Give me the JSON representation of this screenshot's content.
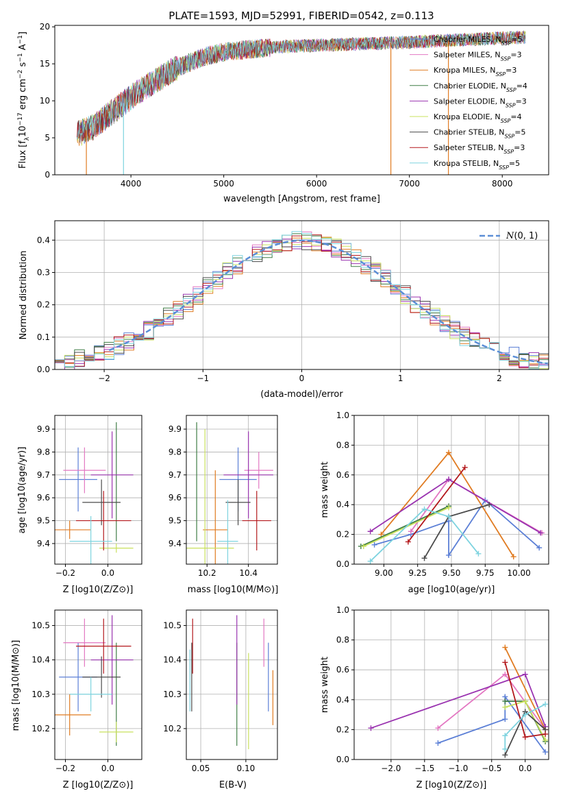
{
  "page_title": "PLATE=1593, MJD=52991, FIBERID=0542, z=0.113",
  "colors": {
    "Chabrier MILES": "#5b7fd6",
    "Salpeter MILES": "#e377c2",
    "Kroupa MILES": "#e07b21",
    "Chabrier ELODIE": "#3f7d45",
    "Salpeter ELODIE": "#9a33b0",
    "Kroupa ELODIE": "#c8e05c",
    "Chabrier STELIB": "#4a4a4a",
    "Salpeter STELIB": "#b3171b",
    "Kroupa STELIB": "#7dd3df",
    "normal_curve": "#5b8ed6"
  },
  "chart_data": [
    {
      "type": "line",
      "title": "PLATE=1593, MJD=52991, FIBERID=0542, z=0.113",
      "xlabel": "wavelength [Angstrom, rest frame]",
      "ylabel": "Flux [fλ10⁻¹⁷ erg cm⁻² s⁻¹ A⁻¹]",
      "xlim": [
        3180,
        8500
      ],
      "ylim": [
        0,
        20.2
      ],
      "xticks": [
        4000,
        5000,
        6000,
        7000,
        8000
      ],
      "yticks": [
        0,
        5,
        10,
        15,
        20
      ],
      "grid": false,
      "legend": "upper right",
      "series": [
        {
          "name": "Chabrier MILES, N_SSP=5"
        },
        {
          "name": "Salpeter MILES, N_SSP=3"
        },
        {
          "name": "Kroupa MILES, N_SSP=3"
        },
        {
          "name": "Chabrier ELODIE, N_SSP=4"
        },
        {
          "name": "Salpeter ELODIE, N_SSP=3"
        },
        {
          "name": "Kroupa ELODIE, N_SSP=4"
        },
        {
          "name": "Chabrier STELIB, N_SSP=5"
        },
        {
          "name": "Salpeter STELIB, N_SSP=3"
        },
        {
          "name": "Kroupa STELIB, N_SSP=5"
        }
      ],
      "continuum": {
        "x": [
          3420,
          3600,
          3800,
          4000,
          4200,
          4500,
          4800,
          5000,
          5300,
          5600,
          6000,
          6500,
          7000,
          7500,
          8000,
          8250
        ],
        "y": [
          5.5,
          6.5,
          8.5,
          10.5,
          12.2,
          14.5,
          16.0,
          16.6,
          17.0,
          17.3,
          17.5,
          17.7,
          17.9,
          18.2,
          18.5,
          18.6
        ]
      },
      "dropouts": [
        {
          "label": "Kroupa MILES",
          "x": 3520
        },
        {
          "label": "Kroupa STELIB",
          "x": 3920
        },
        {
          "label": "Kroupa MILES",
          "x": 6800
        },
        {
          "label": "Kroupa MILES",
          "x": 7420
        }
      ]
    },
    {
      "type": "line",
      "xlabel": "(data-model)/error",
      "ylabel": "Normed distribution",
      "xlim": [
        -2.5,
        2.5
      ],
      "ylim": [
        0,
        0.46
      ],
      "xticks": [
        -2,
        -1,
        0,
        1,
        2
      ],
      "yticks": [
        0.0,
        0.1,
        0.2,
        0.3,
        0.4
      ],
      "grid": true,
      "legend": "upper right",
      "legend_label": "N(0, 1)",
      "bin_width": 0.1,
      "noise_amplitude": 0.06
    },
    {
      "type": "scatter",
      "xlabel": "Z [log10(Z/Z⊙)]",
      "ylabel": "age [log10(age/yr)]",
      "xlim": [
        -0.25,
        0.16
      ],
      "ylim": [
        9.31,
        9.96
      ],
      "xticks": [
        -0.2,
        0.0
      ],
      "yticks": [
        9.4,
        9.5,
        9.6,
        9.7,
        9.8,
        9.9
      ],
      "grid": true,
      "points": [
        {
          "series": "Chabrier MILES",
          "x": -0.14,
          "xerr": 0.09,
          "y": 9.68,
          "yerr": 0.14
        },
        {
          "series": "Salpeter MILES",
          "x": -0.11,
          "xerr": 0.1,
          "y": 9.72,
          "yerr": 0.1
        },
        {
          "series": "Kroupa MILES",
          "x": -0.18,
          "xerr": 0.1,
          "y": 9.46,
          "yerr": 0.04
        },
        {
          "series": "Chabrier ELODIE",
          "x": 0.04,
          "xerr": 0.0,
          "y": 9.67,
          "yerr": 0.26
        },
        {
          "series": "Salpeter ELODIE",
          "x": 0.02,
          "xerr": 0.1,
          "y": 9.7,
          "yerr": 0.19
        },
        {
          "series": "Kroupa ELODIE",
          "x": 0.04,
          "xerr": 0.08,
          "y": 9.38,
          "yerr": 0.02
        },
        {
          "series": "Chabrier STELIB",
          "x": -0.03,
          "xerr": 0.09,
          "y": 9.58,
          "yerr": 0.1
        },
        {
          "series": "Salpeter STELIB",
          "x": -0.02,
          "xerr": 0.13,
          "y": 9.5,
          "yerr": 0.13
        },
        {
          "series": "Kroupa STELIB",
          "x": -0.08,
          "xerr": 0.1,
          "y": 9.41,
          "yerr": 0.11
        }
      ]
    },
    {
      "type": "scatter",
      "xlabel": "mass [log10(M/M⊙)]",
      "xlim": [
        10.1,
        10.54
      ],
      "ylim": [
        9.31,
        9.96
      ],
      "xticks": [
        10.2,
        10.4
      ],
      "yticks": [
        9.4,
        9.5,
        9.6,
        9.7,
        9.8,
        9.9
      ],
      "grid": true,
      "points": [
        {
          "series": "Chabrier MILES",
          "x": 10.35,
          "xerr": 0.09,
          "y": 9.68,
          "yerr": 0.14
        },
        {
          "series": "Salpeter MILES",
          "x": 10.45,
          "xerr": 0.07,
          "y": 9.72,
          "yerr": 0.08
        },
        {
          "series": "Kroupa MILES",
          "x": 10.24,
          "xerr": 0.06,
          "y": 9.46,
          "yerr": 0.26
        },
        {
          "series": "Chabrier ELODIE",
          "x": 10.15,
          "xerr": 0.0,
          "y": 9.67,
          "yerr": 0.26
        },
        {
          "series": "Salpeter ELODIE",
          "x": 10.4,
          "xerr": 0.12,
          "y": 9.7,
          "yerr": 0.19
        },
        {
          "series": "Kroupa ELODIE",
          "x": 10.19,
          "xerr": 0.14,
          "y": 9.38,
          "yerr": 0.52
        },
        {
          "series": "Chabrier STELIB",
          "x": 10.35,
          "xerr": 0.06,
          "y": 9.58,
          "yerr": 0.1
        },
        {
          "series": "Salpeter STELIB",
          "x": 10.44,
          "xerr": 0.07,
          "y": 9.5,
          "yerr": 0.13
        },
        {
          "series": "Kroupa STELIB",
          "x": 10.3,
          "xerr": 0.05,
          "y": 9.41,
          "yerr": 0.18
        }
      ]
    },
    {
      "type": "line",
      "xlabel": "age [log10(age/yr)]",
      "ylabel": "mass weight",
      "xlim": [
        8.78,
        10.22
      ],
      "ylim": [
        0,
        1.0
      ],
      "xticks": [
        9.0,
        9.25,
        9.5,
        9.75,
        10.0
      ],
      "yticks": [
        0.0,
        0.2,
        0.4,
        0.6,
        0.8,
        1.0
      ],
      "grid": true,
      "series": [
        {
          "name": "Chabrier MILES",
          "x": [
            8.93,
            9.2,
            9.48,
            9.48,
            9.75,
            10.15
          ],
          "y": [
            0.13,
            0.2,
            0.29,
            0.06,
            0.43,
            0.11
          ]
        },
        {
          "name": "Salpeter MILES",
          "x": [
            9.2,
            9.48,
            10.17
          ],
          "y": [
            0.22,
            0.57,
            0.21
          ]
        },
        {
          "name": "Kroupa MILES",
          "x": [
            8.98,
            9.48,
            9.96
          ],
          "y": [
            0.2,
            0.75,
            0.05
          ]
        },
        {
          "name": "Chabrier ELODIE",
          "x": [
            8.83,
            9.48
          ],
          "y": [
            0.12,
            0.39
          ]
        },
        {
          "name": "Salpeter ELODIE",
          "x": [
            8.9,
            9.48,
            10.16
          ],
          "y": [
            0.22,
            0.57,
            0.21
          ]
        },
        {
          "name": "Kroupa ELODIE",
          "x": [
            8.85,
            9.48
          ],
          "y": [
            0.12,
            0.38
          ]
        },
        {
          "name": "Chabrier STELIB",
          "x": [
            9.3,
            9.48,
            9.78
          ],
          "y": [
            0.04,
            0.32,
            0.4
          ]
        },
        {
          "name": "Salpeter STELIB",
          "x": [
            9.18,
            9.6
          ],
          "y": [
            0.15,
            0.65
          ]
        },
        {
          "name": "Kroupa STELIB",
          "x": [
            8.9,
            9.3,
            9.48,
            9.7
          ],
          "y": [
            0.02,
            0.37,
            0.32,
            0.07
          ]
        }
      ]
    },
    {
      "type": "scatter",
      "xlabel": "Z [log10(Z/Z⊙)]",
      "ylabel": "mass [log10(M/M⊙)]",
      "xlim": [
        -0.25,
        0.16
      ],
      "ylim": [
        10.11,
        10.545
      ],
      "xticks": [
        -0.2,
        0.0
      ],
      "yticks": [
        10.2,
        10.3,
        10.4,
        10.5
      ],
      "grid": true,
      "points": [
        {
          "series": "Chabrier MILES",
          "x": -0.14,
          "xerr": 0.09,
          "y": 10.35,
          "yerr": 0.1
        },
        {
          "series": "Salpeter MILES",
          "x": -0.11,
          "xerr": 0.1,
          "y": 10.45,
          "yerr": 0.07
        },
        {
          "series": "Kroupa MILES",
          "x": -0.18,
          "xerr": 0.1,
          "y": 10.24,
          "yerr": 0.06
        },
        {
          "series": "Chabrier ELODIE",
          "x": 0.04,
          "xerr": 0.0,
          "y": 10.3,
          "yerr": 0.15
        },
        {
          "series": "Salpeter ELODIE",
          "x": 0.02,
          "xerr": 0.1,
          "y": 10.4,
          "yerr": 0.13
        },
        {
          "series": "Kroupa ELODIE",
          "x": 0.04,
          "xerr": 0.08,
          "y": 10.19,
          "yerr": 0.03
        },
        {
          "series": "Chabrier STELIB",
          "x": -0.03,
          "xerr": 0.09,
          "y": 10.35,
          "yerr": 0.06
        },
        {
          "series": "Salpeter STELIB",
          "x": -0.02,
          "xerr": 0.13,
          "y": 10.44,
          "yerr": 0.08
        },
        {
          "series": "Kroupa STELIB",
          "x": -0.08,
          "xerr": 0.1,
          "y": 10.3,
          "yerr": 0.05
        }
      ]
    },
    {
      "type": "scatter",
      "xlabel": "E(B-V)",
      "xlim": [
        0.034,
        0.135
      ],
      "ylim": [
        10.11,
        10.545
      ],
      "xticks": [
        0.05,
        0.1
      ],
      "yticks": [
        10.2,
        10.3,
        10.4,
        10.5
      ],
      "grid": true,
      "points": [
        {
          "series": "Chabrier MILES",
          "x": 0.125,
          "y": 10.35,
          "yerr": 0.1
        },
        {
          "series": "Salpeter MILES",
          "x": 0.12,
          "y": 10.45,
          "yerr": 0.07
        },
        {
          "series": "Kroupa MILES",
          "x": 0.13,
          "y": 10.29,
          "yerr": 0.08
        },
        {
          "series": "Chabrier ELODIE",
          "x": 0.09,
          "y": 10.3,
          "yerr": 0.15
        },
        {
          "series": "Salpeter ELODIE",
          "x": 0.09,
          "y": 10.4,
          "yerr": 0.13
        },
        {
          "series": "Kroupa ELODIE",
          "x": 0.103,
          "y": 10.28,
          "yerr": 0.14
        },
        {
          "series": "Chabrier STELIB",
          "x": 0.04,
          "y": 10.35,
          "yerr": 0.1
        },
        {
          "series": "Salpeter STELIB",
          "x": 0.041,
          "y": 10.44,
          "yerr": 0.08
        },
        {
          "series": "Kroupa STELIB",
          "x": 0.038,
          "y": 10.34,
          "yerr": 0.09
        }
      ]
    },
    {
      "type": "line",
      "xlabel": "Z [log10(Z/Z⊙)]",
      "ylabel": "mass weight",
      "xlim": [
        -2.55,
        0.35
      ],
      "ylim": [
        0,
        1.0
      ],
      "xticks": [
        -2.0,
        -1.5,
        -1.0,
        -0.5,
        0.0
      ],
      "yticks": [
        0.0,
        0.2,
        0.4,
        0.6,
        0.8,
        1.0
      ],
      "grid": true,
      "series": [
        {
          "name": "Chabrier MILES",
          "x": [
            -1.3,
            -0.3,
            -0.3,
            0.3
          ],
          "y": [
            0.11,
            0.27,
            0.42,
            0.05
          ]
        },
        {
          "name": "Salpeter MILES",
          "x": [
            -1.3,
            -0.3,
            0.3
          ],
          "y": [
            0.21,
            0.57,
            0.2
          ]
        },
        {
          "name": "Kroupa MILES",
          "x": [
            -0.3,
            0.3
          ],
          "y": [
            0.75,
            0.2
          ]
        },
        {
          "name": "Chabrier ELODIE",
          "x": [
            -0.3,
            0.0,
            0.3
          ],
          "y": [
            0.39,
            0.39,
            0.12
          ]
        },
        {
          "name": "Salpeter ELODIE",
          "x": [
            -2.3,
            0.0,
            0.3
          ],
          "y": [
            0.21,
            0.57,
            0.22
          ]
        },
        {
          "name": "Kroupa ELODIE",
          "x": [
            -0.3,
            0.0,
            0.3
          ],
          "y": [
            0.35,
            0.39,
            0.13
          ]
        },
        {
          "name": "Chabrier STELIB",
          "x": [
            -0.3,
            0.0,
            0.3
          ],
          "y": [
            0.03,
            0.32,
            0.2
          ]
        },
        {
          "name": "Salpeter STELIB",
          "x": [
            -0.3,
            0.0,
            0.3
          ],
          "y": [
            0.65,
            0.15,
            0.17
          ]
        },
        {
          "name": "Kroupa STELIB",
          "x": [
            -0.3,
            -0.3,
            0.0,
            0.3
          ],
          "y": [
            0.07,
            0.16,
            0.3,
            0.37
          ]
        }
      ]
    }
  ]
}
